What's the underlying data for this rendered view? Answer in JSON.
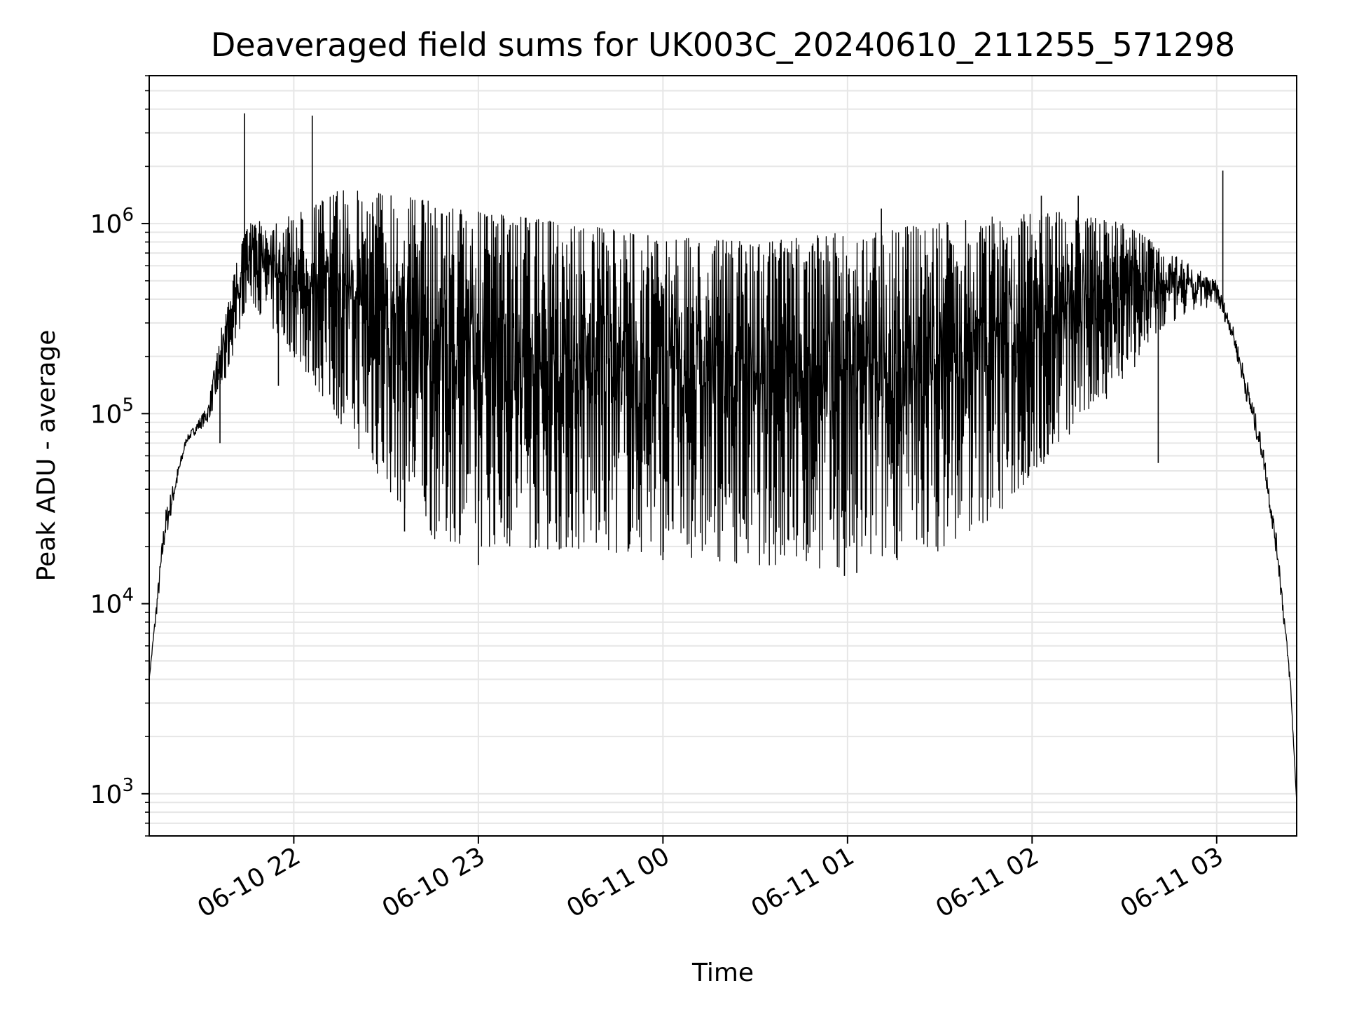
{
  "chart_data": {
    "type": "line",
    "title": "Deaveraged field sums for UK003C_20240610_211255_571298",
    "xlabel": "Time",
    "ylabel": "Peak ADU - average",
    "yscale": "log",
    "ylim": [
      600,
      6000000
    ],
    "xlim": [
      "2024-06-10 21:13",
      "2024-06-11 03:26"
    ],
    "grid": true,
    "line_color": "#000000",
    "grid_color": "#e6e6e6",
    "x_ticks": [
      {
        "time": "2024-06-10 22:00",
        "label": "06-10 22"
      },
      {
        "time": "2024-06-10 23:00",
        "label": "06-10 23"
      },
      {
        "time": "2024-06-11 00:00",
        "label": "06-11 00"
      },
      {
        "time": "2024-06-11 01:00",
        "label": "06-11 01"
      },
      {
        "time": "2024-06-11 02:00",
        "label": "06-11 02"
      },
      {
        "time": "2024-06-11 03:00",
        "label": "06-11 03"
      }
    ],
    "y_ticks": [
      {
        "value": 1000,
        "base": "10",
        "exp": "3"
      },
      {
        "value": 10000,
        "base": "10",
        "exp": "4"
      },
      {
        "value": 100000,
        "base": "10",
        "exp": "5"
      },
      {
        "value": 1000000,
        "base": "10",
        "exp": "6"
      }
    ],
    "series": [
      {
        "envelope": [
          {
            "time": "2024-06-10 21:13",
            "high": 4000,
            "low": 4000
          },
          {
            "time": "2024-06-10 21:18",
            "high": 30000,
            "low": 20000
          },
          {
            "time": "2024-06-10 21:25",
            "high": 75000,
            "low": 70000
          },
          {
            "time": "2024-06-10 21:32",
            "high": 110000,
            "low": 90000
          },
          {
            "time": "2024-06-10 21:38",
            "high": 400000,
            "low": 150000
          },
          {
            "time": "2024-06-10 21:45",
            "high": 1000000,
            "low": 400000
          },
          {
            "time": "2024-06-10 22:00",
            "high": 1100000,
            "low": 200000
          },
          {
            "time": "2024-06-10 22:15",
            "high": 1500000,
            "low": 90000
          },
          {
            "time": "2024-06-10 22:30",
            "high": 1500000,
            "low": 40000
          },
          {
            "time": "2024-06-10 22:45",
            "high": 1300000,
            "low": 22000
          },
          {
            "time": "2024-06-10 23:00",
            "high": 1150000,
            "low": 20000
          },
          {
            "time": "2024-06-10 23:30",
            "high": 1000000,
            "low": 19000
          },
          {
            "time": "2024-06-11 00:00",
            "high": 850000,
            "low": 18000
          },
          {
            "time": "2024-06-11 00:30",
            "high": 800000,
            "low": 16000
          },
          {
            "time": "2024-06-11 01:00",
            "high": 900000,
            "low": 15000
          },
          {
            "time": "2024-06-11 01:30",
            "high": 1000000,
            "low": 19000
          },
          {
            "time": "2024-06-11 01:50",
            "high": 1100000,
            "low": 30000
          },
          {
            "time": "2024-06-11 02:10",
            "high": 1150000,
            "low": 70000
          },
          {
            "time": "2024-06-11 02:30",
            "high": 1000000,
            "low": 150000
          },
          {
            "time": "2024-06-11 02:45",
            "high": 700000,
            "low": 300000
          },
          {
            "time": "2024-06-11 03:00",
            "high": 500000,
            "low": 380000
          },
          {
            "time": "2024-06-11 03:05",
            "high": 300000,
            "low": 250000
          },
          {
            "time": "2024-06-11 03:10",
            "high": 150000,
            "low": 110000
          },
          {
            "time": "2024-06-11 03:15",
            "high": 70000,
            "low": 55000
          },
          {
            "time": "2024-06-11 03:20",
            "high": 20000,
            "low": 15000
          },
          {
            "time": "2024-06-11 03:24",
            "high": 4000,
            "low": 3500
          },
          {
            "time": "2024-06-11 03:26",
            "high": 900,
            "low": 900
          }
        ],
        "spikes": [
          {
            "time": "2024-06-10 21:36",
            "value": 70000
          },
          {
            "time": "2024-06-10 21:44",
            "value": 3800000
          },
          {
            "time": "2024-06-10 21:55",
            "value": 140000
          },
          {
            "time": "2024-06-10 22:06",
            "value": 3700000
          },
          {
            "time": "2024-06-10 22:36",
            "value": 24000
          },
          {
            "time": "2024-06-10 23:00",
            "value": 16000
          },
          {
            "time": "2024-06-11 00:00",
            "value": 17000
          },
          {
            "time": "2024-06-11 00:59",
            "value": 14000
          },
          {
            "time": "2024-06-11 01:03",
            "value": 14500
          },
          {
            "time": "2024-06-11 01:11",
            "value": 1200000
          },
          {
            "time": "2024-06-11 02:03",
            "value": 1400000
          },
          {
            "time": "2024-06-11 02:15",
            "value": 1400000
          },
          {
            "time": "2024-06-11 02:41",
            "value": 55000
          },
          {
            "time": "2024-06-11 03:02",
            "value": 1900000
          }
        ]
      }
    ]
  }
}
